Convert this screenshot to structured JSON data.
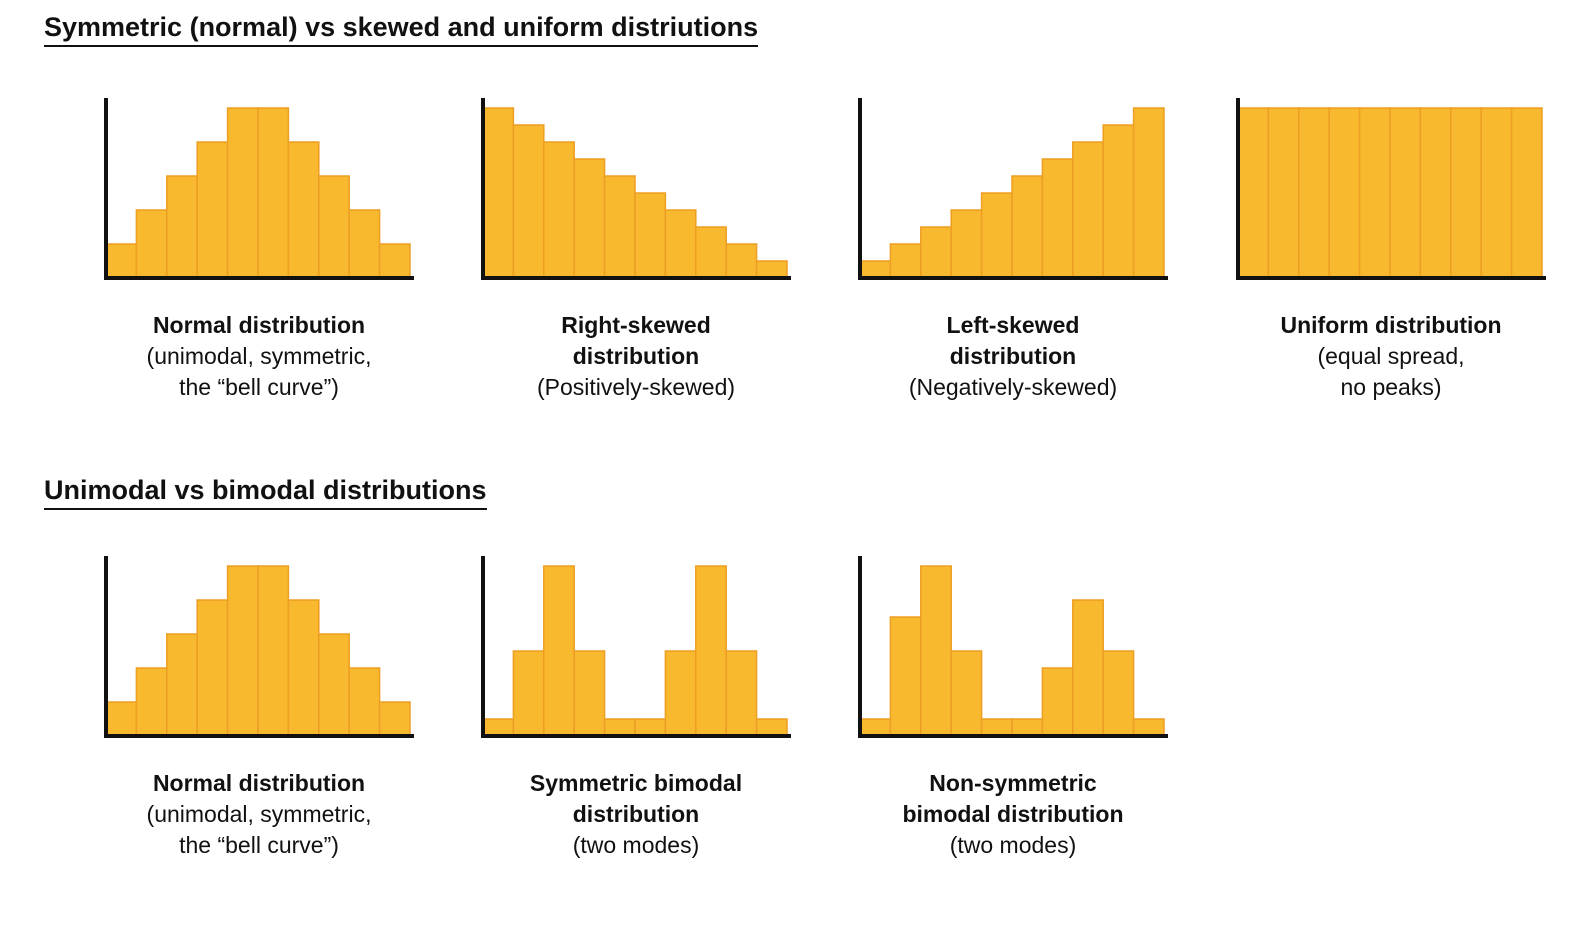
{
  "sections": [
    {
      "title": "Symmetric (normal) vs skewed and uniform distriutions"
    },
    {
      "title": "Unimodal vs bimodal distributions"
    }
  ],
  "colors": {
    "bar_fill": "#f8b92f",
    "bar_stroke": "#ed9e23",
    "axis": "#111111"
  },
  "chart_data": [
    {
      "type": "bar",
      "caption_title": "Normal distribution",
      "caption_sub_lines": [
        "(unimodal, symmetric,",
        "the “bell curve”)"
      ],
      "values": [
        1,
        2,
        3,
        4,
        5,
        5,
        4,
        3,
        2,
        1
      ],
      "ylim": [
        0,
        5
      ],
      "grid": false
    },
    {
      "type": "bar",
      "caption_title_lines": [
        "Right-skewed",
        "distribution"
      ],
      "caption_sub_lines": [
        "(Positively-skewed)"
      ],
      "values": [
        10,
        9,
        8,
        7,
        6,
        5,
        4,
        3,
        2,
        1
      ],
      "ylim": [
        0,
        10
      ],
      "grid": false
    },
    {
      "type": "bar",
      "caption_title_lines": [
        "Left-skewed",
        "distribution"
      ],
      "caption_sub_lines": [
        "(Negatively-skewed)"
      ],
      "values": [
        1,
        2,
        3,
        4,
        5,
        6,
        7,
        8,
        9,
        10
      ],
      "ylim": [
        0,
        10
      ],
      "grid": false
    },
    {
      "type": "bar",
      "caption_title": "Uniform distribution",
      "caption_sub_lines": [
        "(equal spread,",
        "no peaks)"
      ],
      "values": [
        1,
        1,
        1,
        1,
        1,
        1,
        1,
        1,
        1,
        1
      ],
      "ylim": [
        0,
        1
      ],
      "grid": false
    },
    {
      "type": "bar",
      "caption_title": "Normal distribution",
      "caption_sub_lines": [
        "(unimodal, symmetric,",
        "the “bell curve”)"
      ],
      "values": [
        1,
        2,
        3,
        4,
        5,
        5,
        4,
        3,
        2,
        1
      ],
      "ylim": [
        0,
        5
      ],
      "grid": false
    },
    {
      "type": "bar",
      "caption_title_lines": [
        "Symmetric bimodal",
        "distribution"
      ],
      "caption_sub_lines": [
        "(two modes)"
      ],
      "values": [
        1,
        5,
        10,
        5,
        1,
        1,
        5,
        10,
        5,
        1
      ],
      "ylim": [
        0,
        10
      ],
      "grid": false
    },
    {
      "type": "bar",
      "caption_title_lines": [
        "Non-symmetric",
        "bimodal distribution"
      ],
      "caption_sub_lines": [
        "(two modes)"
      ],
      "values": [
        1,
        7,
        10,
        5,
        1,
        1,
        4,
        8,
        5,
        1
      ],
      "ylim": [
        0,
        10
      ],
      "grid": false
    }
  ]
}
